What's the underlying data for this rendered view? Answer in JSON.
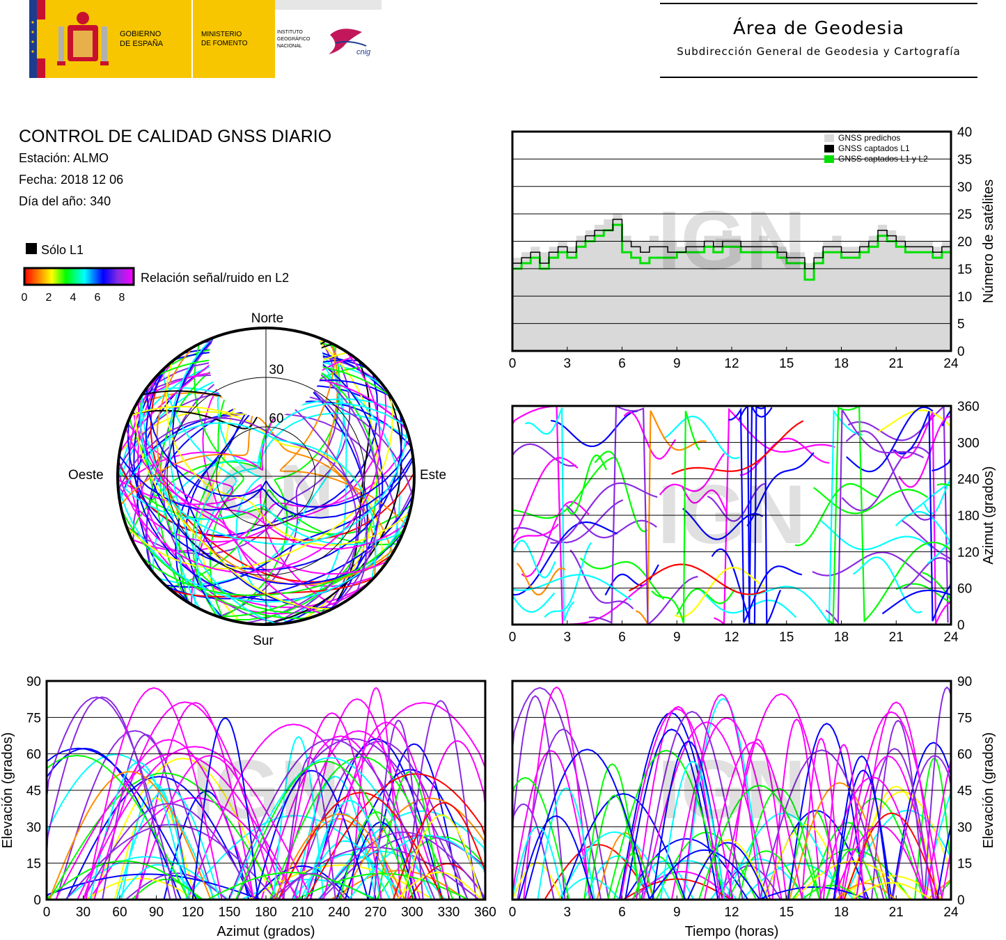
{
  "header": {
    "gov_line1": "GOBIERNO",
    "gov_line2": "DE ESPAÑA",
    "min_line1": "MINISTERIO",
    "min_line2": "DE FOMENTO",
    "inst_line1": "INSTITUTO",
    "inst_line2": "GEOGRÁFICO",
    "inst_line3": "NACIONAL",
    "cnig": "cnig",
    "area_title": "Área de Geodesia",
    "area_subtitle": "Subdirección General de Geodesia y Cartografía",
    "colors": {
      "spain_red": "#c8102e",
      "spain_yellow": "#f7c600",
      "eu_blue": "#1d3c8f"
    }
  },
  "info": {
    "title": "CONTROL DE CALIDAD GNSS DIARIO",
    "station": "Estación: ALMO",
    "date": "Fecha: 2018 12 06",
    "doy": "Día del año: 340",
    "legend_l1": "Sólo L1",
    "legend_snr": "Relación señal/ruido en L2",
    "snr_ticks": [
      "0",
      "2",
      "4",
      "6",
      "8"
    ]
  },
  "watermark": "IGN",
  "chart_data": [
    {
      "type": "area",
      "id": "satellite-count",
      "ylabel": "Número de satélites",
      "xlim": [
        0,
        24
      ],
      "ylim": [
        0,
        40
      ],
      "xticks": [
        "0",
        "3",
        "6",
        "9",
        "12",
        "15",
        "18",
        "21",
        "24"
      ],
      "yticks": [
        "0",
        "5",
        "10",
        "15",
        "20",
        "25",
        "30",
        "35",
        "40"
      ],
      "grid": true,
      "legend_position": "top-right",
      "series": [
        {
          "name": "GNSS predichos",
          "color": "#d9d9d9",
          "x": [
            0,
            0.5,
            1,
            1.5,
            2,
            2.5,
            3,
            3.5,
            4,
            4.5,
            5,
            5.5,
            6,
            6.5,
            7,
            7.5,
            8,
            8.5,
            9,
            9.5,
            10,
            10.5,
            11,
            11.5,
            12,
            12.5,
            13,
            13.5,
            14,
            14.5,
            15,
            15.5,
            16,
            16.5,
            17,
            17.5,
            18,
            18.5,
            19,
            19.5,
            20,
            20.5,
            21,
            21.5,
            22,
            22.5,
            23,
            23.5,
            24
          ],
          "values": [
            17,
            18,
            19,
            18,
            19,
            20,
            19,
            21,
            22,
            23,
            24,
            25,
            21,
            20,
            20,
            21,
            20,
            20,
            19,
            20,
            20,
            21,
            21,
            22,
            21,
            20,
            20,
            21,
            20,
            19,
            18,
            18,
            16,
            18,
            20,
            21,
            19,
            19,
            20,
            21,
            23,
            22,
            21,
            20,
            20,
            20,
            19,
            20,
            17
          ]
        },
        {
          "name": "GNSS captados L1",
          "color": "#000000",
          "x": [
            0,
            0.5,
            1,
            1.5,
            2,
            2.5,
            3,
            3.5,
            4,
            4.5,
            5,
            5.5,
            6,
            6.5,
            7,
            7.5,
            8,
            8.5,
            9,
            9.5,
            10,
            10.5,
            11,
            11.5,
            12,
            12.5,
            13,
            13.5,
            14,
            14.5,
            15,
            15.5,
            16,
            16.5,
            17,
            17.5,
            18,
            18.5,
            19,
            19.5,
            20,
            20.5,
            21,
            21.5,
            22,
            22.5,
            23,
            23.5,
            24
          ],
          "values": [
            16,
            17,
            18,
            16,
            18,
            19,
            18,
            20,
            21,
            22,
            22,
            24,
            20,
            19,
            18,
            19,
            19,
            18,
            18,
            19,
            19,
            20,
            19,
            20,
            20,
            19,
            19,
            19,
            19,
            18,
            17,
            17,
            15,
            17,
            19,
            19,
            18,
            18,
            19,
            20,
            22,
            21,
            20,
            19,
            19,
            19,
            18,
            19,
            16
          ]
        },
        {
          "name": "GNSS captados L1 y L2",
          "color": "#00e000",
          "x": [
            0,
            0.5,
            1,
            1.5,
            2,
            2.5,
            3,
            3.5,
            4,
            4.5,
            5,
            5.5,
            6,
            6.5,
            7,
            7.5,
            8,
            8.5,
            9,
            9.5,
            10,
            10.5,
            11,
            11.5,
            12,
            12.5,
            13,
            13.5,
            14,
            14.5,
            15,
            15.5,
            16,
            16.5,
            17,
            17.5,
            18,
            18.5,
            19,
            19.5,
            20,
            20.5,
            21,
            21.5,
            22,
            22.5,
            23,
            23.5,
            24
          ],
          "values": [
            15,
            16,
            17,
            15,
            17,
            18,
            17,
            19,
            20,
            21,
            22,
            23,
            18,
            17,
            16,
            17,
            17,
            17,
            18,
            18,
            18,
            19,
            18,
            19,
            19,
            18,
            18,
            18,
            18,
            17,
            16,
            16,
            13,
            16,
            18,
            18,
            17,
            17,
            18,
            19,
            21,
            20,
            19,
            18,
            18,
            18,
            17,
            18,
            15
          ]
        }
      ]
    },
    {
      "type": "scatter",
      "id": "azimuth-time",
      "ylabel": "Azimut (grados)",
      "xlim": [
        0,
        24
      ],
      "ylim": [
        0,
        360
      ],
      "xticks": [
        "0",
        "3",
        "6",
        "9",
        "12",
        "15",
        "18",
        "21",
        "24"
      ],
      "yticks": [
        "0",
        "60",
        "120",
        "180",
        "240",
        "300",
        "360"
      ],
      "grid": true,
      "color_scale": "snr_l2"
    },
    {
      "type": "scatter",
      "id": "skyplot",
      "projection": "polar",
      "direction_labels": {
        "north": "Norte",
        "south": "Sur",
        "east": "Este",
        "west": "Oeste"
      },
      "ring_labels": [
        "30",
        "60"
      ],
      "color_scale": "snr_l2"
    },
    {
      "type": "scatter",
      "id": "elevation-azimuth",
      "xlabel": "Azimut (grados)",
      "ylabel": "Elevación (grados)",
      "xlim": [
        0,
        360
      ],
      "ylim": [
        0,
        90
      ],
      "xticks": [
        "0",
        "30",
        "60",
        "90",
        "120",
        "150",
        "180",
        "210",
        "240",
        "270",
        "300",
        "330",
        "360"
      ],
      "yticks": [
        "0",
        "15",
        "30",
        "45",
        "60",
        "75",
        "90"
      ],
      "grid": true,
      "color_scale": "snr_l2"
    },
    {
      "type": "scatter",
      "id": "elevation-time",
      "xlabel": "Tiempo (horas)",
      "ylabel": "Elevación (grados)",
      "xlim": [
        0,
        24
      ],
      "ylim": [
        0,
        90
      ],
      "xticks": [
        "0",
        "3",
        "6",
        "9",
        "12",
        "15",
        "18",
        "21",
        "24"
      ],
      "yticks": [
        "0",
        "15",
        "30",
        "45",
        "60",
        "75",
        "90"
      ],
      "grid": true,
      "color_scale": "snr_l2"
    }
  ]
}
